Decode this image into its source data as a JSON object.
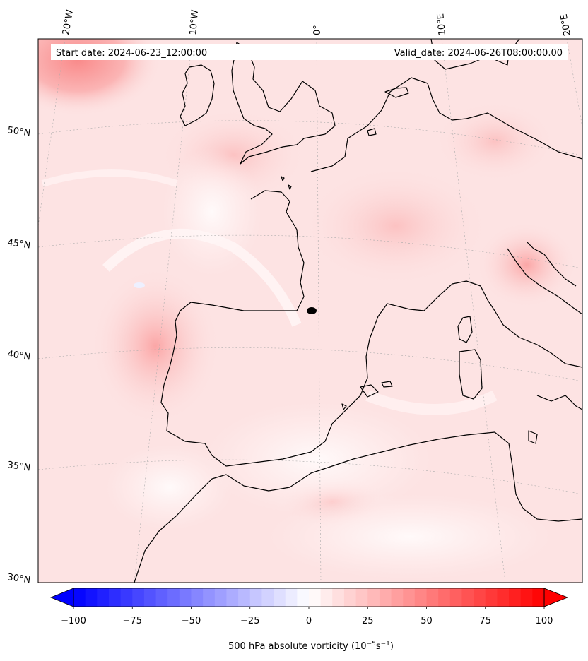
{
  "header": {
    "start_label": "Start date: 2024-06-23_12:00:00",
    "valid_label": "Valid_date: 2024-06-26T08:00:00.00"
  },
  "map": {
    "projection": "lambert conformal",
    "field": "500 hPa absolute vorticity",
    "longitude_labels": [
      "20°W",
      "10°W",
      "0°",
      "10°E",
      "20°E"
    ],
    "latitude_labels": [
      "50°N",
      "45°N",
      "40°N",
      "35°N",
      "30°N"
    ],
    "colormap": "bwr"
  },
  "colorbar": {
    "min": -100,
    "max": 100,
    "tick_labels": [
      "−100",
      "−75",
      "−50",
      "−25",
      "0",
      "25",
      "50",
      "75",
      "100"
    ],
    "label_main": "500 hPa absolute vorticity (10",
    "label_exp1": "−5",
    "label_mid": "s",
    "label_exp2": "−1",
    "label_close": ")",
    "extend": "both"
  }
}
